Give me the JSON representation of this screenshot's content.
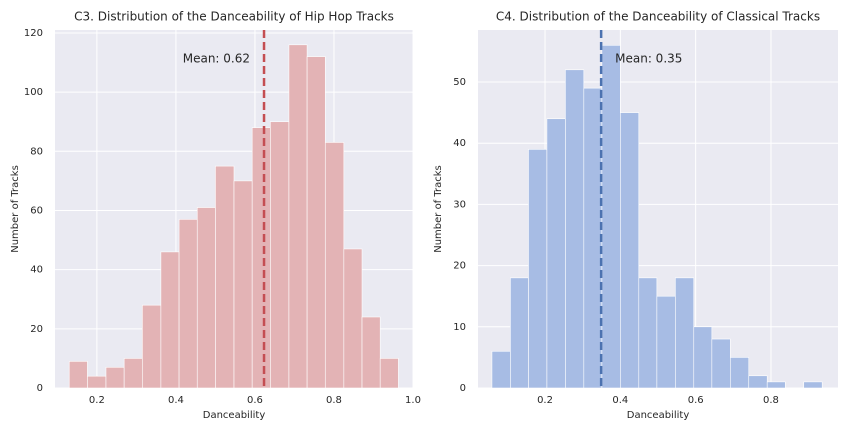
{
  "chart_data": [
    {
      "type": "histogram",
      "title": "C3. Distribution of the Danceability of Hip Hop Tracks",
      "xlabel": "Danceability",
      "ylabel": "Number of Tracks",
      "bins": [
        0.13,
        0.176,
        0.223,
        0.269,
        0.315,
        0.362,
        0.408,
        0.454,
        0.5,
        0.547,
        0.593,
        0.639,
        0.686,
        0.732,
        0.778,
        0.825,
        0.871,
        0.917,
        0.963
      ],
      "values": [
        9,
        4,
        7,
        10,
        28,
        46,
        57,
        61,
        75,
        70,
        88,
        90,
        116,
        112,
        83,
        47,
        24,
        10
      ],
      "color": "#e3b3b5",
      "xlim": [
        0.094,
        1.0
      ],
      "ylim": [
        0,
        121
      ],
      "xticks": [
        0.2,
        0.4,
        0.6,
        0.8,
        {
          "value": 1.0,
          "label": "1.0"
        }
      ],
      "yticks": [
        0,
        20,
        40,
        60,
        80,
        100,
        120
      ],
      "grid": true,
      "mean_line": {
        "value": 0.623,
        "label": "Mean: 0.62",
        "color": "#c44e52"
      }
    },
    {
      "type": "histogram",
      "title": "C4. Distribution of the Danceability of Classical Tracks",
      "xlabel": "Danceability",
      "ylabel": "Number of Tracks",
      "bins": [
        0.059,
        0.108,
        0.156,
        0.205,
        0.254,
        0.303,
        0.351,
        0.4,
        0.449,
        0.497,
        0.546,
        0.595,
        0.643,
        0.692,
        0.741,
        0.79,
        0.838,
        0.887,
        0.936
      ],
      "values": [
        6,
        18,
        39,
        44,
        52,
        49,
        56,
        45,
        18,
        15,
        18,
        10,
        8,
        5,
        2,
        1,
        0,
        1
      ],
      "color": "#a7bce4",
      "xlim": [
        0.022,
        0.978
      ],
      "ylim": [
        0,
        58.5
      ],
      "xticks": [
        0.2,
        0.4,
        0.6,
        0.8
      ],
      "yticks": [
        0,
        10,
        20,
        30,
        40,
        50
      ],
      "grid": true,
      "mean_line": {
        "value": 0.349,
        "label": "Mean: 0.35",
        "color": "#4c72b0"
      }
    }
  ]
}
